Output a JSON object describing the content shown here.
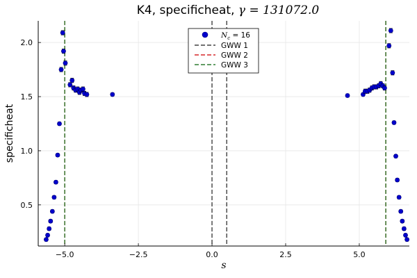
{
  "chart_data": {
    "type": "scatter",
    "title": "K4, specificheat, ",
    "title_math": "γ = 131072.0",
    "xlabel": "s",
    "ylabel": "specificheat",
    "xlim": [
      -5.9,
      6.7
    ],
    "ylim": [
      0.12,
      2.2
    ],
    "x_ticks": [
      -5.0,
      -2.5,
      0.0,
      2.5,
      5.0
    ],
    "x_tick_labels": [
      "−5.0",
      "−2.5",
      "0.0",
      "2.5",
      "5.0"
    ],
    "y_ticks": [
      0.5,
      1.0,
      1.5,
      2.0
    ],
    "y_tick_labels": [
      "0.5",
      "1.0",
      "1.5",
      "2.0"
    ],
    "grid": true,
    "legend_position": "top-center",
    "series": [
      {
        "name": "N_c = 16",
        "legend_math": "N",
        "legend_sub": "c",
        "legend_rest": " = 16",
        "kind": "points",
        "color": "#0000cc",
        "points": [
          {
            "x": -5.63,
            "y": 0.18,
            "err": 0.015
          },
          {
            "x": -5.58,
            "y": 0.22,
            "err": 0.015
          },
          {
            "x": -5.53,
            "y": 0.28,
            "err": 0.015
          },
          {
            "x": -5.48,
            "y": 0.35,
            "err": 0.015
          },
          {
            "x": -5.42,
            "y": 0.44,
            "err": 0.015
          },
          {
            "x": -5.36,
            "y": 0.57,
            "err": 0.015
          },
          {
            "x": -5.3,
            "y": 0.71,
            "err": 0.015
          },
          {
            "x": -5.24,
            "y": 0.96,
            "err": 0.015
          },
          {
            "x": -5.18,
            "y": 1.25,
            "err": 0.015
          },
          {
            "x": -5.12,
            "y": 1.75,
            "err": 0.02
          },
          {
            "x": -5.07,
            "y": 2.09,
            "err": 0.02
          },
          {
            "x": -5.04,
            "y": 1.92,
            "err": 0.02
          },
          {
            "x": -4.98,
            "y": 1.81,
            "err": 0.02
          },
          {
            "x": -4.82,
            "y": 1.61,
            "err": 0.02
          },
          {
            "x": -4.75,
            "y": 1.65,
            "err": 0.02
          },
          {
            "x": -4.7,
            "y": 1.58,
            "err": 0.02
          },
          {
            "x": -4.63,
            "y": 1.56,
            "err": 0.02
          },
          {
            "x": -4.56,
            "y": 1.57,
            "err": 0.02
          },
          {
            "x": -4.5,
            "y": 1.54,
            "err": 0.02
          },
          {
            "x": -4.44,
            "y": 1.56,
            "err": 0.02
          },
          {
            "x": -4.38,
            "y": 1.57,
            "err": 0.02
          },
          {
            "x": -4.33,
            "y": 1.53,
            "err": 0.02
          },
          {
            "x": -4.25,
            "y": 1.52,
            "err": 0.02
          },
          {
            "x": -3.38,
            "y": 1.52,
            "err": 0.015
          },
          {
            "x": 4.6,
            "y": 1.51,
            "err": 0.015
          },
          {
            "x": 5.13,
            "y": 1.52,
            "err": 0.015
          },
          {
            "x": 5.2,
            "y": 1.55,
            "err": 0.02
          },
          {
            "x": 5.28,
            "y": 1.55,
            "err": 0.02
          },
          {
            "x": 5.35,
            "y": 1.56,
            "err": 0.02
          },
          {
            "x": 5.43,
            "y": 1.58,
            "err": 0.02
          },
          {
            "x": 5.5,
            "y": 1.59,
            "err": 0.02
          },
          {
            "x": 5.58,
            "y": 1.59,
            "err": 0.02
          },
          {
            "x": 5.66,
            "y": 1.6,
            "err": 0.02
          },
          {
            "x": 5.73,
            "y": 1.62,
            "err": 0.02
          },
          {
            "x": 5.8,
            "y": 1.6,
            "err": 0.02
          },
          {
            "x": 5.86,
            "y": 1.58,
            "err": 0.02
          },
          {
            "x": 6.01,
            "y": 1.97,
            "err": 0.02
          },
          {
            "x": 6.07,
            "y": 2.11,
            "err": 0.02
          },
          {
            "x": 6.13,
            "y": 1.72,
            "err": 0.02
          },
          {
            "x": 6.18,
            "y": 1.26,
            "err": 0.015
          },
          {
            "x": 6.24,
            "y": 0.95,
            "err": 0.015
          },
          {
            "x": 6.29,
            "y": 0.73,
            "err": 0.015
          },
          {
            "x": 6.35,
            "y": 0.57,
            "err": 0.015
          },
          {
            "x": 6.41,
            "y": 0.44,
            "err": 0.015
          },
          {
            "x": 6.46,
            "y": 0.35,
            "err": 0.015
          },
          {
            "x": 6.52,
            "y": 0.28,
            "err": 0.015
          },
          {
            "x": 6.57,
            "y": 0.22,
            "err": 0.015
          },
          {
            "x": 6.62,
            "y": 0.18,
            "err": 0.015
          }
        ]
      },
      {
        "name": "GWW 1",
        "kind": "vlines",
        "color": "#404040",
        "x": [
          0.0,
          0.5
        ]
      },
      {
        "name": "GWW 2",
        "kind": "vlines",
        "color": "#d62728",
        "x": [
          -5.0,
          5.9
        ]
      },
      {
        "name": "GWW 3",
        "kind": "vlines",
        "color": "#2e7d32",
        "x": [
          -5.0,
          5.9
        ]
      }
    ]
  }
}
